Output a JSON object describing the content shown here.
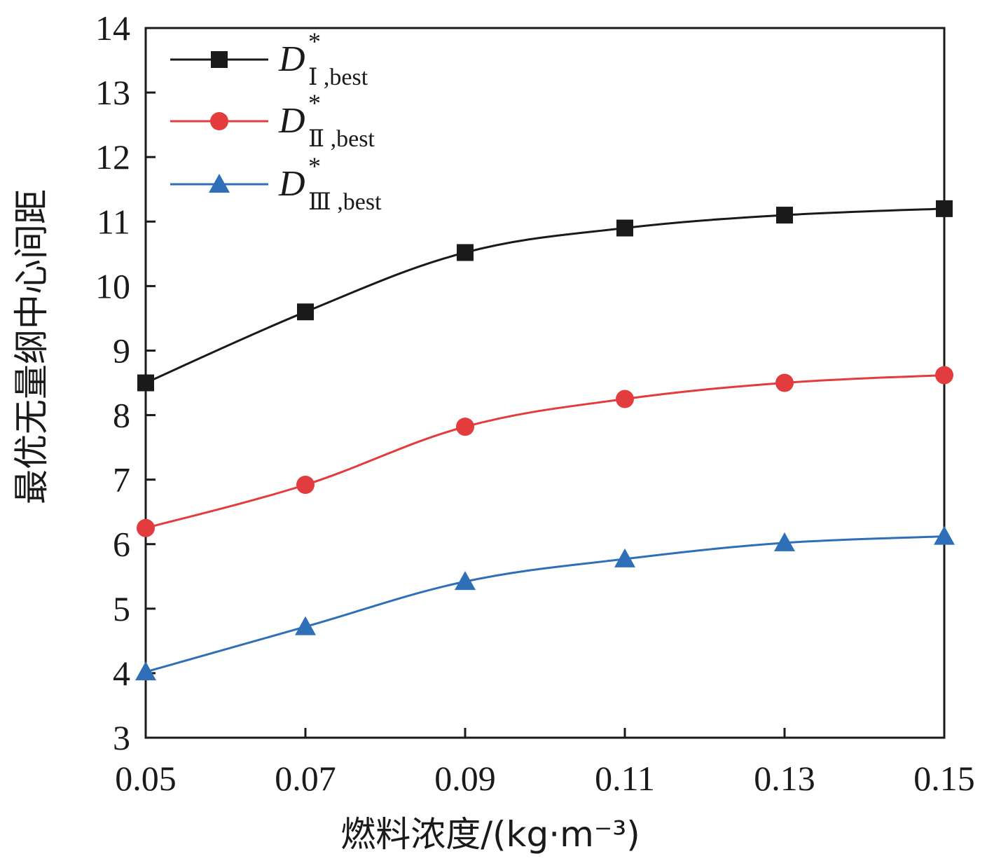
{
  "chart_data": {
    "type": "line",
    "title": "",
    "xlabel": "燃料浓度/(kg·m⁻³)",
    "ylabel": "最优无量纲中心间距",
    "x": [
      0.05,
      0.07,
      0.09,
      0.11,
      0.13,
      0.15
    ],
    "x_tick_labels": [
      "0.05",
      "0.07",
      "0.09",
      "0.11",
      "0.13",
      "0.15"
    ],
    "y_ticks": [
      3,
      4,
      5,
      6,
      7,
      8,
      9,
      10,
      11,
      12,
      13,
      14
    ],
    "xlim": [
      0.05,
      0.15
    ],
    "ylim": [
      3,
      14
    ],
    "grid": false,
    "legend_position": "top-left",
    "series": [
      {
        "name": "D*Ⅰ,best",
        "legend": {
          "main": "D",
          "sup": "*",
          "sub": "Ⅰ ,best"
        },
        "values": [
          8.5,
          9.6,
          10.52,
          10.9,
          11.1,
          11.2
        ],
        "color": "#1a1a1a",
        "marker": "square"
      },
      {
        "name": "D*Ⅱ,best",
        "legend": {
          "main": "D",
          "sup": "*",
          "sub": "Ⅱ ,best"
        },
        "values": [
          6.25,
          6.92,
          7.82,
          8.25,
          8.5,
          8.62
        ],
        "color": "#e23c3f",
        "marker": "circle"
      },
      {
        "name": "D*Ⅲ,best",
        "legend": {
          "main": "D",
          "sup": "*",
          "sub": "Ⅲ ,best"
        },
        "values": [
          4.02,
          4.72,
          5.42,
          5.77,
          6.02,
          6.12
        ],
        "color": "#2e6fb7",
        "marker": "triangle"
      }
    ]
  }
}
